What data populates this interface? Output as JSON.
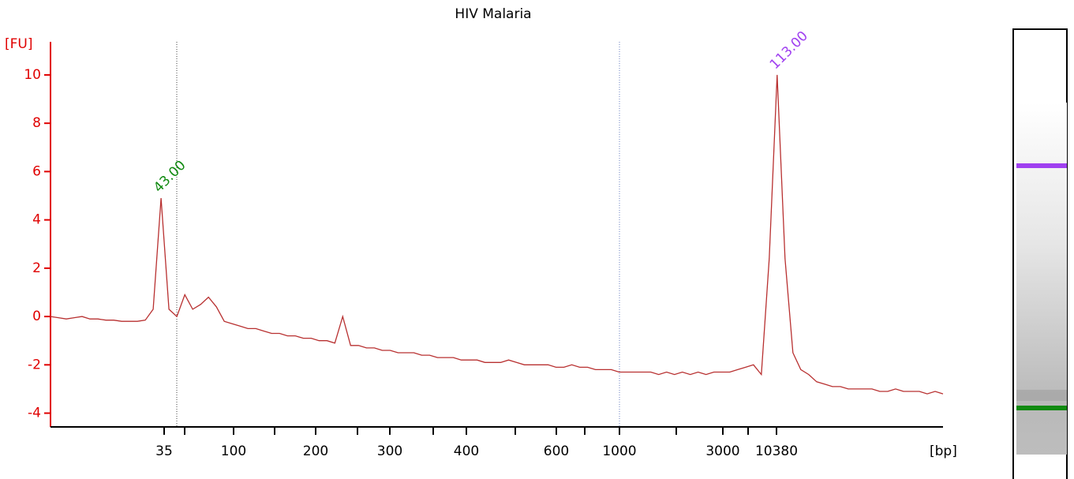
{
  "chart_data": {
    "type": "line",
    "title": "HIV Malaria",
    "y_label": "[FU]",
    "x_label": "[bp]",
    "color": "#b83030",
    "axis_color": "#e00000",
    "ylim": [
      -4.57,
      11.37
    ],
    "yticks": [
      -4,
      -2,
      0,
      2,
      4,
      6,
      8,
      10
    ],
    "xticks": [
      35,
      null,
      100,
      null,
      200,
      null,
      300,
      null,
      400,
      null,
      600,
      null,
      1000,
      null,
      3000,
      null,
      10380
    ],
    "values": [
      0.0,
      -0.05,
      -0.1,
      -0.05,
      0.0,
      -0.1,
      -0.1,
      -0.15,
      -0.15,
      -0.2,
      -0.2,
      -0.2,
      -0.15,
      0.3,
      4.9,
      0.3,
      0.0,
      0.9,
      0.3,
      0.5,
      0.8,
      0.4,
      -0.2,
      -0.3,
      -0.4,
      -0.5,
      -0.5,
      -0.6,
      -0.7,
      -0.7,
      -0.8,
      -0.8,
      -0.9,
      -0.9,
      -1.0,
      -1.0,
      -1.1,
      0.0,
      -1.2,
      -1.2,
      -1.3,
      -1.3,
      -1.4,
      -1.4,
      -1.5,
      -1.5,
      -1.5,
      -1.6,
      -1.6,
      -1.7,
      -1.7,
      -1.7,
      -1.8,
      -1.8,
      -1.8,
      -1.9,
      -1.9,
      -1.9,
      -1.8,
      -1.9,
      -2.0,
      -2.0,
      -2.0,
      -2.0,
      -2.1,
      -2.1,
      -2.0,
      -2.1,
      -2.1,
      -2.2,
      -2.2,
      -2.2,
      -2.3,
      -2.3,
      -2.3,
      -2.3,
      -2.3,
      -2.4,
      -2.3,
      -2.4,
      -2.3,
      -2.4,
      -2.3,
      -2.4,
      -2.3,
      -2.3,
      -2.3,
      -2.2,
      -2.1,
      -2.0,
      -2.4,
      2.4,
      10.0,
      2.4,
      -1.5,
      -2.2,
      -2.4,
      -2.7,
      -2.8,
      -2.9,
      -2.9,
      -3.0,
      -3.0,
      -3.0,
      -3.0,
      -3.1,
      -3.1,
      -3.0,
      -3.1,
      -3.1,
      -3.1,
      -3.2,
      -3.1,
      -3.2
    ],
    "peaks": [
      {
        "label": "43.00",
        "color": "#108a10"
      },
      {
        "label": "113.00",
        "color": "#a040f0"
      }
    ]
  }
}
